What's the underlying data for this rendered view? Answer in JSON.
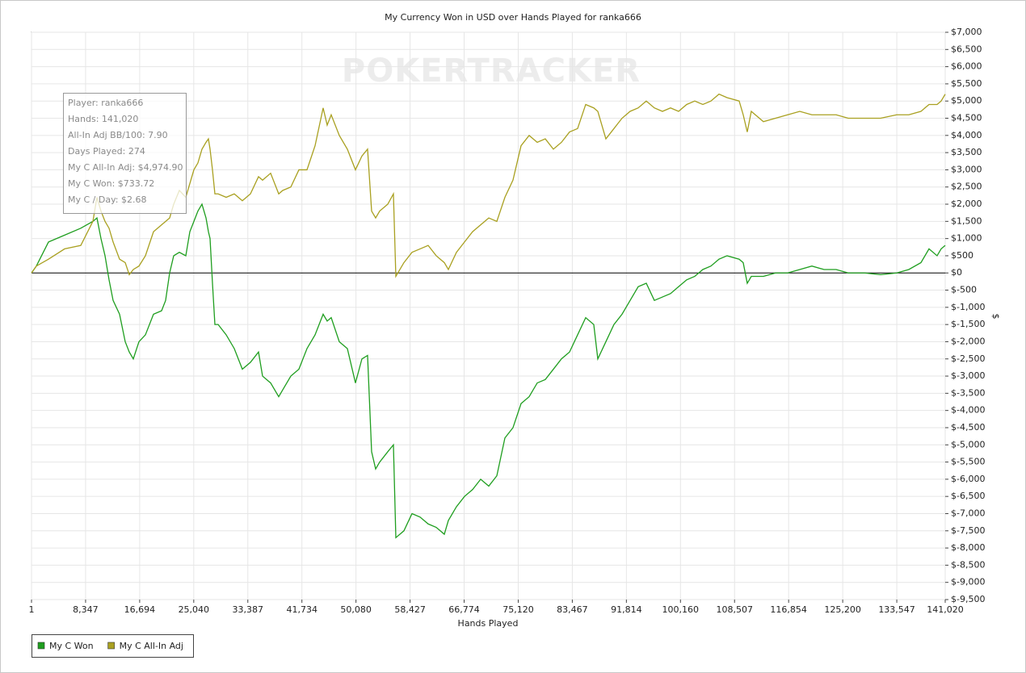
{
  "chart_data": {
    "type": "line",
    "title": "My Currency Won in USD over Hands Played for ranka666",
    "watermark": "POKERTRACKER",
    "x_label": "Hands Played",
    "y_label": "$",
    "legend": "bottom-left",
    "grid": true,
    "xlim": [
      1,
      141020
    ],
    "ylim": [
      -9500,
      7000
    ],
    "xticks": [
      1,
      {
        "value": 8347,
        "label": "8,347"
      },
      {
        "value": 16694,
        "label": "16,694"
      },
      {
        "value": 25040,
        "label": "25,040"
      },
      {
        "value": 33387,
        "label": "33,387"
      },
      {
        "value": 41734,
        "label": "41,734"
      },
      {
        "value": 50080,
        "label": "50,080"
      },
      {
        "value": 58427,
        "label": "58,427"
      },
      {
        "value": 66774,
        "label": "66,774"
      },
      {
        "value": 75120,
        "label": "75,120"
      },
      {
        "value": 83467,
        "label": "83,467"
      },
      {
        "value": 91814,
        "label": "91,814"
      },
      {
        "value": 100160,
        "label": "100,160"
      },
      {
        "value": 108507,
        "label": "108,507"
      },
      {
        "value": 116854,
        "label": "116,854"
      },
      {
        "value": 125200,
        "label": "125,200"
      },
      {
        "value": 133547,
        "label": "133,547"
      },
      {
        "value": 141020,
        "label": "141,020"
      }
    ],
    "yticks": [
      {
        "value": 7000,
        "label": "$7,000"
      },
      {
        "value": 6500,
        "label": "$6,500"
      },
      {
        "value": 6000,
        "label": "$6,000"
      },
      {
        "value": 5500,
        "label": "$5,500"
      },
      {
        "value": 5000,
        "label": "$5,000"
      },
      {
        "value": 4500,
        "label": "$4,500"
      },
      {
        "value": 4000,
        "label": "$4,000"
      },
      {
        "value": 3500,
        "label": "$3,500"
      },
      {
        "value": 3000,
        "label": "$3,000"
      },
      {
        "value": 2500,
        "label": "$2,500"
      },
      {
        "value": 2000,
        "label": "$2,000"
      },
      {
        "value": 1500,
        "label": "$1,500"
      },
      {
        "value": 1000,
        "label": "$1,000"
      },
      {
        "value": 500,
        "label": "$500"
      },
      {
        "value": 0,
        "label": "$0"
      },
      {
        "value": -500,
        "label": "$-500"
      },
      {
        "value": -1000,
        "label": "$-1,000"
      },
      {
        "value": -1500,
        "label": "$-1,500"
      },
      {
        "value": -2000,
        "label": "$-2,000"
      },
      {
        "value": -2500,
        "label": "$-2,500"
      },
      {
        "value": -3000,
        "label": "$-3,000"
      },
      {
        "value": -3500,
        "label": "$-3,500"
      },
      {
        "value": -4000,
        "label": "$-4,000"
      },
      {
        "value": -4500,
        "label": "$-4,500"
      },
      {
        "value": -5000,
        "label": "$-5,000"
      },
      {
        "value": -5500,
        "label": "$-5,500"
      },
      {
        "value": -6000,
        "label": "$-6,000"
      },
      {
        "value": -6500,
        "label": "$-6,500"
      },
      {
        "value": -7000,
        "label": "$-7,000"
      },
      {
        "value": -7500,
        "label": "$-7,500"
      },
      {
        "value": -8000,
        "label": "$-8,000"
      },
      {
        "value": -8500,
        "label": "$-8,500"
      },
      {
        "value": -9000,
        "label": "$-9,000"
      },
      {
        "value": -9500,
        "label": "$-9,500"
      }
    ],
    "tooltip": [
      "Player: ranka666",
      "Hands: 141,020",
      "All-In Adj BB/100: 7.90",
      "Days Played: 274",
      "My C All-In Adj: $4,974.90",
      "My C Won: $733.72",
      "My C / Day: $2.68"
    ],
    "x": [
      1,
      749,
      2619,
      5113,
      7606,
      9477,
      10100,
      10723,
      11347,
      11970,
      12594,
      13591,
      14464,
      15087,
      15711,
      16584,
      17581,
      18828,
      20075,
      20698,
      21321,
      21945,
      22818,
      23815,
      24438,
      25062,
      25685,
      26309,
      26932,
      27306,
      27556,
      27930,
      28304,
      28802,
      30049,
      31296,
      32543,
      33789,
      35036,
      35660,
      36907,
      38153,
      38777,
      40024,
      41270,
      42517,
      43764,
      45011,
      45634,
      46257,
      47504,
      48751,
      49998,
      50995,
      51868,
      52491,
      53115,
      53738,
      54985,
      55858,
      56232,
      57479,
      58726,
      59973,
      61219,
      62466,
      63713,
      64336,
      65583,
      66830,
      68077,
      69323,
      70570,
      71817,
      73064,
      74311,
      75557,
      76804,
      78051,
      79298,
      80545,
      81791,
      83038,
      84285,
      85532,
      86778,
      87402,
      88649,
      89895,
      91142,
      92389,
      93636,
      94883,
      96129,
      97376,
      98623,
      99870,
      101116,
      102363,
      103610,
      104857,
      106104,
      107350,
      109221,
      109844,
      110468,
      111091,
      112961,
      114831,
      116701,
      118572,
      120442,
      122312,
      124182,
      126053,
      128546,
      131040,
      133533,
      135403,
      137274,
      138521,
      139767,
      140391,
      141020
    ],
    "series": [
      {
        "name": "My C Won",
        "color": "#1f9e1f",
        "values": [
          0,
          200,
          900,
          1100,
          1300,
          1500,
          1600,
          1000,
          500,
          -200,
          -800,
          -1200,
          -2000,
          -2300,
          -2500,
          -2000,
          -1800,
          -1200,
          -1100,
          -800,
          0,
          500,
          600,
          500,
          1200,
          1500,
          1800,
          2000,
          1600,
          1200,
          1000,
          -300,
          -1500,
          -1500,
          -1800,
          -2200,
          -2800,
          -2600,
          -2300,
          -3000,
          -3200,
          -3600,
          -3400,
          -3000,
          -2800,
          -2200,
          -1800,
          -1200,
          -1400,
          -1300,
          -2000,
          -2200,
          -3200,
          -2500,
          -2400,
          -5200,
          -5700,
          -5500,
          -5200,
          -5000,
          -7700,
          -7500,
          -7000,
          -7100,
          -7300,
          -7400,
          -7600,
          -7200,
          -6800,
          -6500,
          -6300,
          -6000,
          -6200,
          -5900,
          -4800,
          -4500,
          -3800,
          -3600,
          -3200,
          -3100,
          -2800,
          -2500,
          -2300,
          -1800,
          -1300,
          -1500,
          -2500,
          -2000,
          -1500,
          -1200,
          -800,
          -400,
          -300,
          -800,
          -700,
          -600,
          -400,
          -200,
          -100,
          100,
          200,
          400,
          500,
          400,
          300,
          -300,
          -100,
          -100,
          0,
          0,
          100,
          200,
          100,
          100,
          0,
          0,
          -50,
          0,
          100,
          300,
          700,
          500,
          700,
          800
        ]
      },
      {
        "name": "My C All-In Adj",
        "color": "#a9a020",
        "values": [
          0,
          200,
          400,
          700,
          800,
          1500,
          2200,
          1800,
          1500,
          1300,
          900,
          400,
          300,
          -50,
          100,
          200,
          500,
          1200,
          1400,
          1500,
          1600,
          2000,
          2400,
          2200,
          2600,
          3000,
          3200,
          3600,
          3800,
          3900,
          3600,
          3000,
          2300,
          2300,
          2200,
          2300,
          2100,
          2300,
          2800,
          2700,
          2900,
          2300,
          2400,
          2500,
          3000,
          3000,
          3700,
          4800,
          4300,
          4600,
          4000,
          3600,
          3000,
          3400,
          3600,
          1800,
          1600,
          1800,
          2000,
          2300,
          -100,
          300,
          600,
          700,
          800,
          500,
          300,
          100,
          600,
          900,
          1200,
          1400,
          1600,
          1500,
          2200,
          2700,
          3700,
          4000,
          3800,
          3900,
          3600,
          3800,
          4100,
          4200,
          4900,
          4800,
          4700,
          3900,
          4200,
          4500,
          4700,
          4800,
          5000,
          4800,
          4700,
          4800,
          4700,
          4900,
          5000,
          4900,
          5000,
          5200,
          5100,
          5000,
          4600,
          4100,
          4700,
          4400,
          4500,
          4600,
          4700,
          4600,
          4600,
          4600,
          4500,
          4500,
          4500,
          4600,
          4600,
          4700,
          4900,
          4900,
          5000,
          5200
        ]
      }
    ]
  }
}
